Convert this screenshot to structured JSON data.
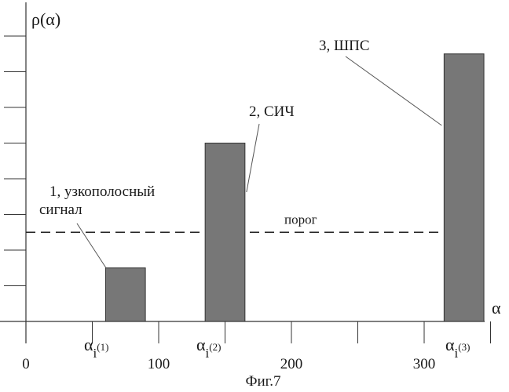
{
  "chart_data": {
    "type": "bar",
    "ylabel": "ρ(α)",
    "xlabel": "α",
    "x_ticks_labeled": [
      0,
      100,
      200,
      300
    ],
    "x_tick_step": 50,
    "xlim": [
      0,
      350
    ],
    "ylim": [
      0,
      8.5
    ],
    "y_tick_step": 1,
    "y_ticks_labeled": [],
    "grid": false,
    "bars": [
      {
        "x_center": 75,
        "value": 1.5,
        "label": "1, узкополосный сигнал",
        "x_marker": "α",
        "x_marker_sub": "i",
        "x_marker_sup": "(1)"
      },
      {
        "x_center": 150,
        "value": 5.0,
        "label": "2, СИЧ",
        "x_marker": "α",
        "x_marker_sub": "i",
        "x_marker_sup": "(2)"
      },
      {
        "x_center": 330,
        "value": 7.5,
        "label": "3, ШПС",
        "x_marker": "α",
        "x_marker_sub": "i",
        "x_marker_sup": "(3)"
      }
    ],
    "bar_width": 30,
    "threshold": {
      "value": 2.5,
      "label": "порог"
    },
    "colors": {
      "bar_fill": "#777777",
      "bar_edge": "#333333",
      "axis": "#333333"
    }
  },
  "caption": "Фиг.7"
}
